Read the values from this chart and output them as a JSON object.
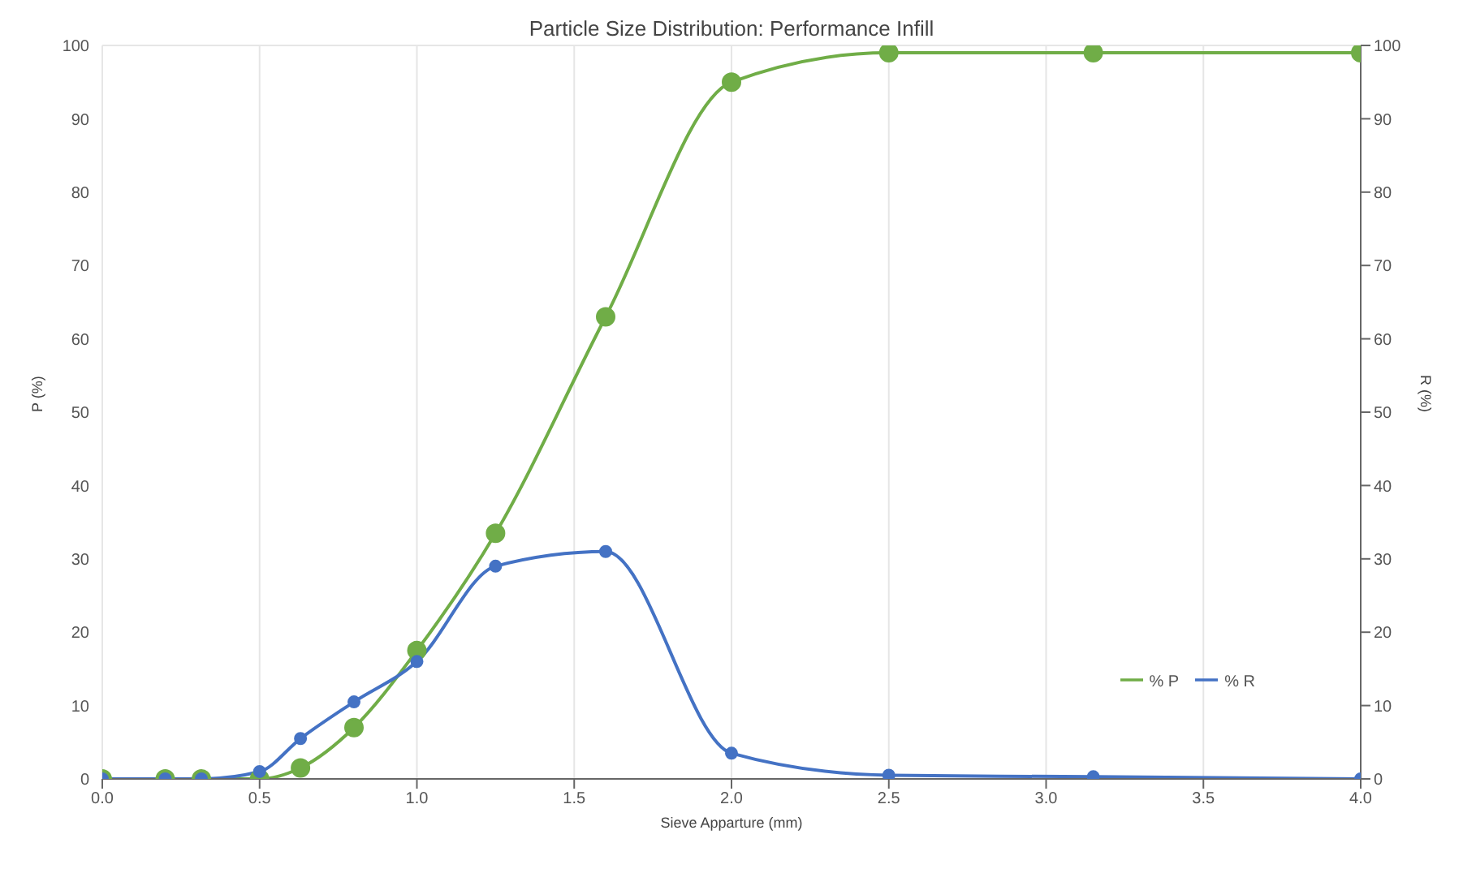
{
  "chart_data": {
    "type": "line",
    "title": "Particle Size Distribution: Performance Infill",
    "xlabel": "Sieve Apparture (mm)",
    "ylabel": "P (%)",
    "y2label": "R (%)",
    "x": [
      0,
      0.2,
      0.315,
      0.5,
      0.63,
      0.8,
      1.0,
      1.25,
      1.6,
      2.0,
      2.5,
      3.15,
      4.0
    ],
    "series": [
      {
        "name": "% P",
        "color": "#70ad47",
        "values": [
          0,
          0,
          0,
          0,
          1.5,
          7,
          17.5,
          33.5,
          63,
          95,
          99,
          99,
          99
        ]
      },
      {
        "name": "% R",
        "color": "#4472c4",
        "values": [
          0,
          0,
          0,
          1,
          5.5,
          10.5,
          16,
          29,
          31,
          3.5,
          0.5,
          0.3,
          0
        ]
      }
    ],
    "xlim": [
      0,
      4
    ],
    "xticks": [
      {
        "value": 0,
        "label": "0.0"
      },
      {
        "value": 0.5,
        "label": "0.5"
      },
      {
        "value": 1,
        "label": "1.0"
      },
      {
        "value": 1.5,
        "label": "1.5"
      },
      {
        "value": 2,
        "label": "2.0"
      },
      {
        "value": 2.5,
        "label": "2.5"
      },
      {
        "value": 3,
        "label": "3.0"
      },
      {
        "value": 3.5,
        "label": "3.5"
      },
      {
        "value": 4,
        "label": "4.0"
      }
    ],
    "ylim": [
      0,
      100
    ],
    "yticks": [
      0,
      10,
      20,
      30,
      40,
      50,
      60,
      70,
      80,
      90,
      100
    ],
    "y2lim": [
      0,
      100
    ],
    "y2ticks": [
      0,
      10,
      20,
      30,
      40,
      50,
      60,
      70,
      80,
      90,
      100
    ],
    "grid": true,
    "legend": "bottom right",
    "marker": "circle",
    "line_style": "solid"
  }
}
